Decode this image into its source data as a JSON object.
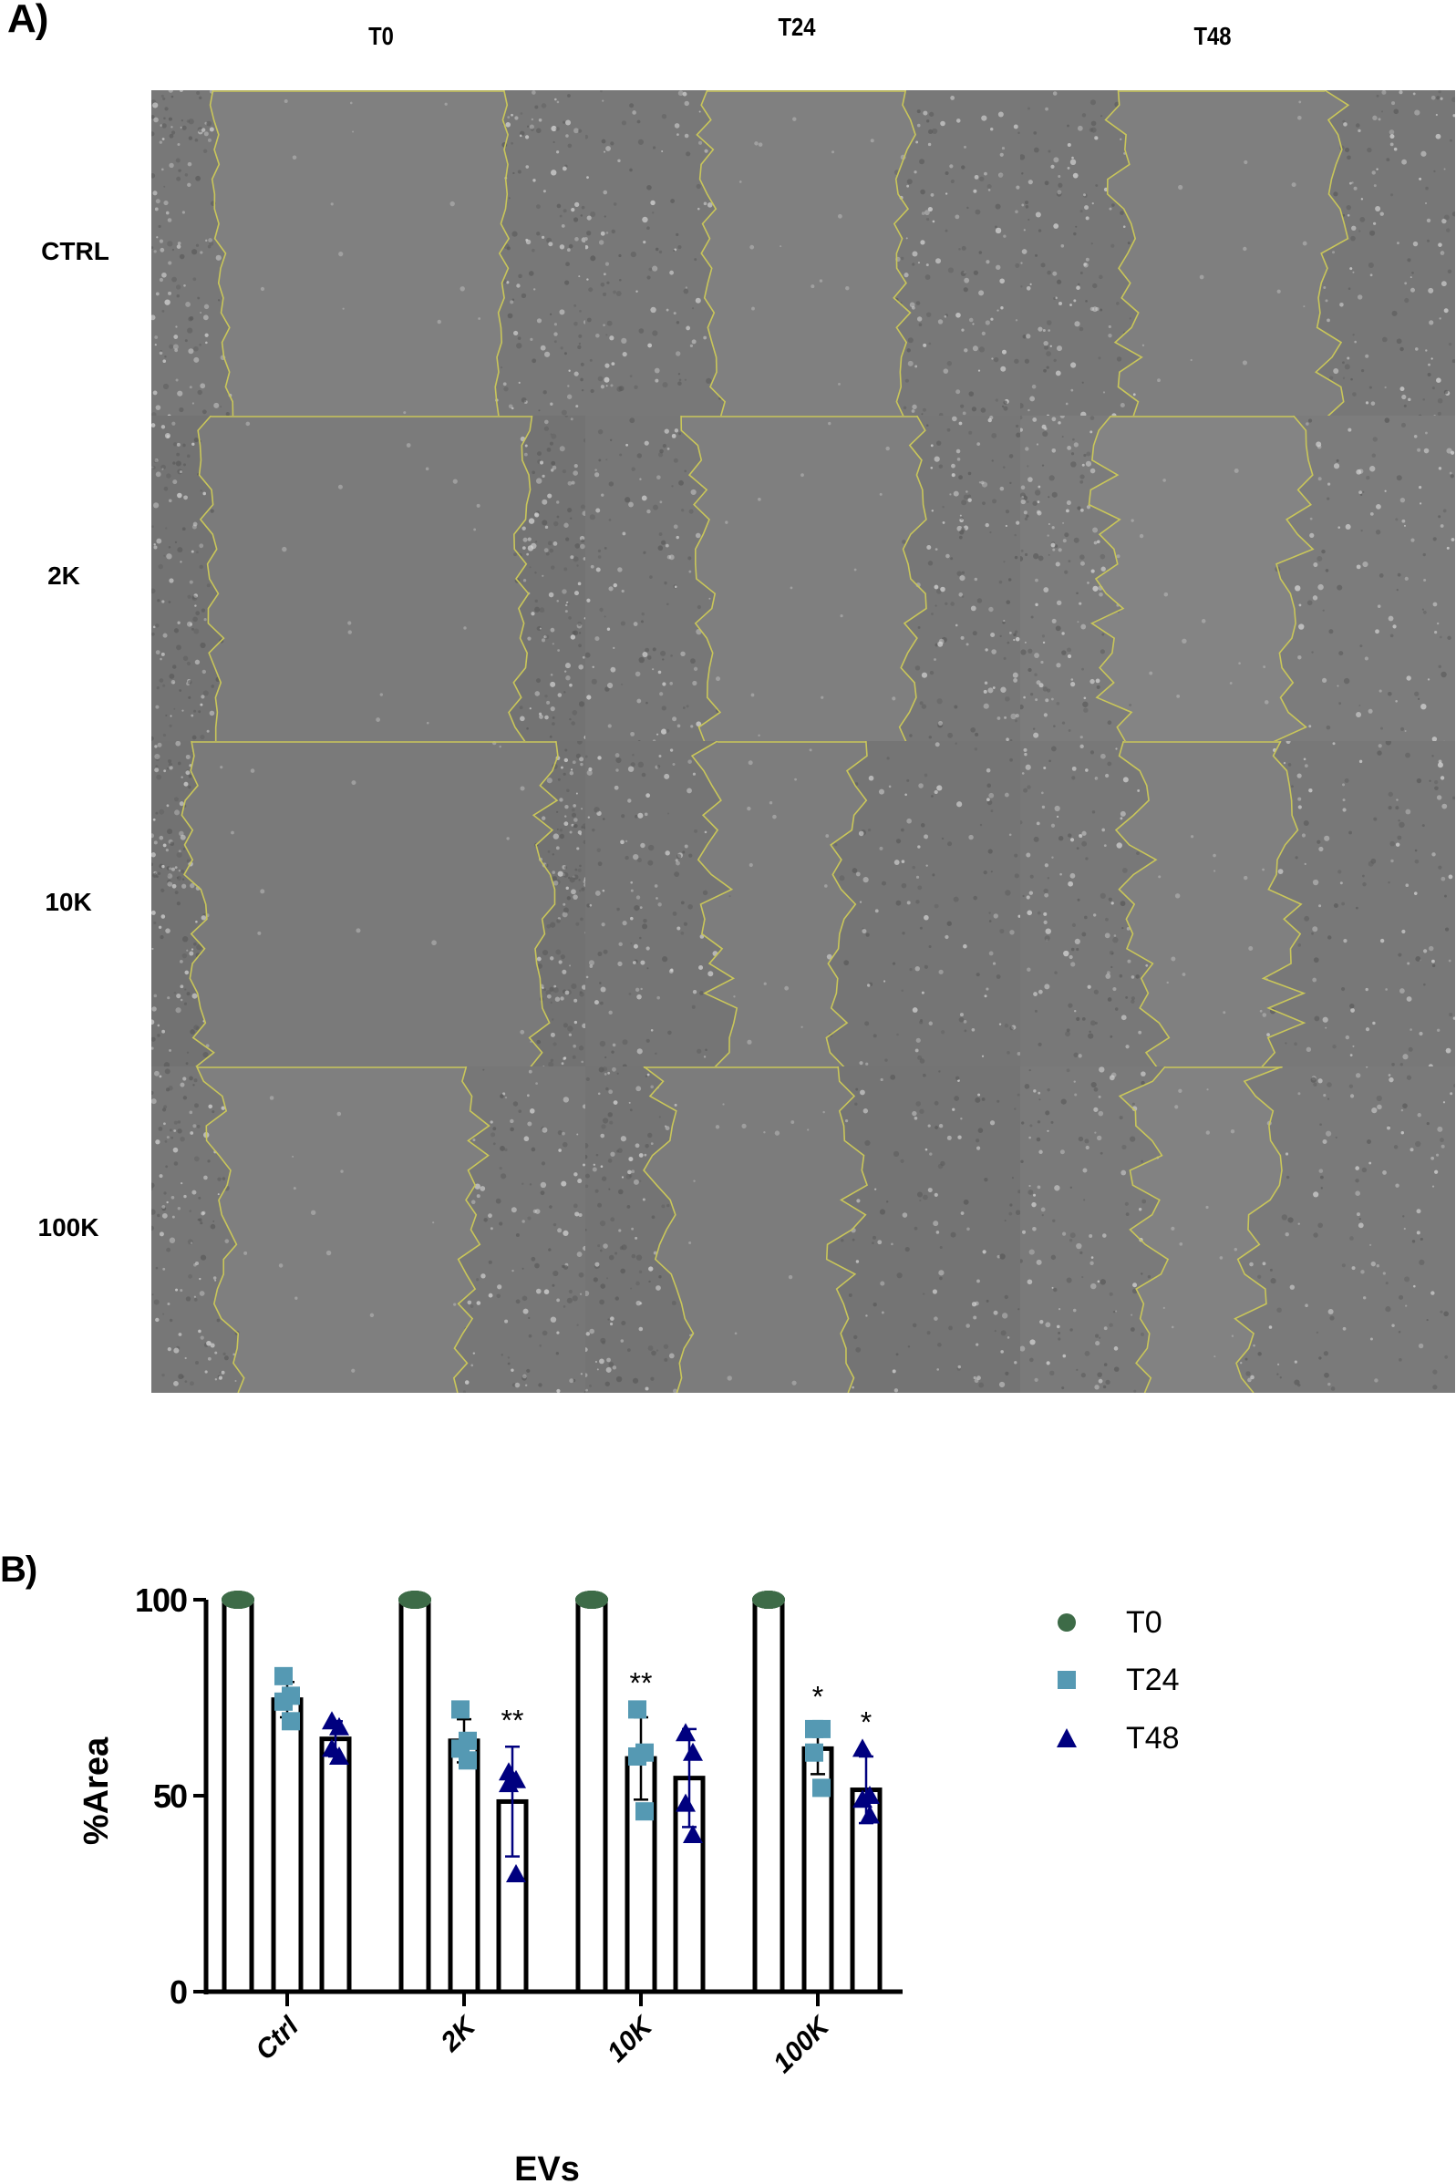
{
  "panel_a": {
    "label": "A)",
    "columns": [
      "T0",
      "T24",
      "T48"
    ],
    "rows": [
      "CTRL",
      "2K",
      "10K",
      "100K"
    ],
    "image_style": {
      "gap_color": "#8c8c8c",
      "cell_color": "#7f7f7f",
      "outline_color": "#c9c65a"
    },
    "wound_edges": [
      [
        {
          "l": 0.14,
          "r": 0.82
        },
        {
          "l": 0.27,
          "r": 0.74
        },
        {
          "l": 0.22,
          "r": 0.73
        }
      ],
      [
        {
          "l": 0.12,
          "r": 0.86
        },
        {
          "l": 0.25,
          "r": 0.77
        },
        {
          "l": 0.18,
          "r": 0.64
        }
      ],
      [
        {
          "l": 0.08,
          "r": 0.91
        },
        {
          "l": 0.28,
          "r": 0.61
        },
        {
          "l": 0.26,
          "r": 0.62
        }
      ],
      [
        {
          "l": 0.14,
          "r": 0.75
        },
        {
          "l": 0.17,
          "r": 0.61
        },
        {
          "l": 0.28,
          "r": 0.55
        }
      ]
    ]
  },
  "panel_b": {
    "label": "B)"
  },
  "chart_data": {
    "type": "bar",
    "title": "",
    "xlabel": "EVs",
    "ylabel": "%Area",
    "ylim": [
      0,
      100
    ],
    "yticks": [
      0,
      50,
      100
    ],
    "categories": [
      "Ctrl",
      "2K",
      "10K",
      "100K"
    ],
    "grid": false,
    "legend_position": "right",
    "series": [
      {
        "name": "T0",
        "marker": "circle",
        "color": "#3d6b47",
        "values": [
          100,
          100,
          100,
          100
        ],
        "sd": [
          0,
          0,
          0,
          0
        ],
        "points": [
          [
            100,
            100,
            100,
            100
          ],
          [
            100,
            100,
            100,
            100
          ],
          [
            100,
            100,
            100,
            100
          ],
          [
            100,
            100,
            100,
            100
          ]
        ],
        "significance": [
          "",
          "",
          "",
          ""
        ]
      },
      {
        "name": "T24",
        "marker": "square",
        "color": "#5599b3",
        "values": [
          74.5,
          64,
          59.5,
          62
        ],
        "sd": [
          4.5,
          5.5,
          10.5,
          6.5
        ],
        "points": [
          [
            80.5,
            75.5,
            74,
            69
          ],
          [
            72,
            64,
            62,
            59
          ],
          [
            72,
            61,
            60,
            46
          ],
          [
            67,
            67,
            61,
            52
          ]
        ],
        "significance": [
          "",
          "",
          "**",
          "*"
        ]
      },
      {
        "name": "T48",
        "marker": "triangle",
        "color": "#00007f",
        "values": [
          64.5,
          48.5,
          54.5,
          51.5
        ],
        "sd": [
          4.5,
          14,
          12.5,
          8.5
        ],
        "points": [
          [
            69,
            67.5,
            62,
            60
          ],
          [
            56,
            54,
            53,
            30
          ],
          [
            66,
            61,
            48,
            40
          ],
          [
            62,
            50,
            49,
            45
          ]
        ],
        "significance": [
          "",
          "**",
          "",
          "*"
        ]
      }
    ]
  }
}
